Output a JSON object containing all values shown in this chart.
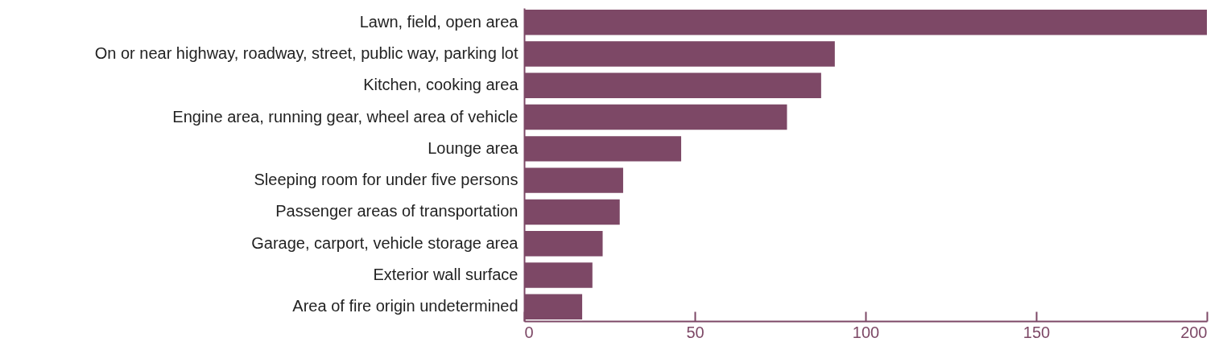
{
  "chart_data": {
    "type": "bar",
    "orientation": "horizontal",
    "categories": [
      "Lawn, field, open area",
      "On or near highway, roadway, street, public way, parking lot",
      "Kitchen, cooking area",
      "Engine area, running gear, wheel area of vehicle",
      "Lounge area",
      "Sleeping room for under five persons",
      "Passenger areas of transportation",
      "Garage, carport, vehicle storage area",
      "Exterior wall surface",
      "Area of fire origin undetermined"
    ],
    "values": [
      200,
      91,
      87,
      77,
      46,
      29,
      28,
      23,
      20,
      17
    ],
    "color": "#7d4866",
    "xlim": [
      0,
      200
    ],
    "xticks": [
      0,
      50,
      100,
      150,
      200
    ],
    "grid": false
  }
}
